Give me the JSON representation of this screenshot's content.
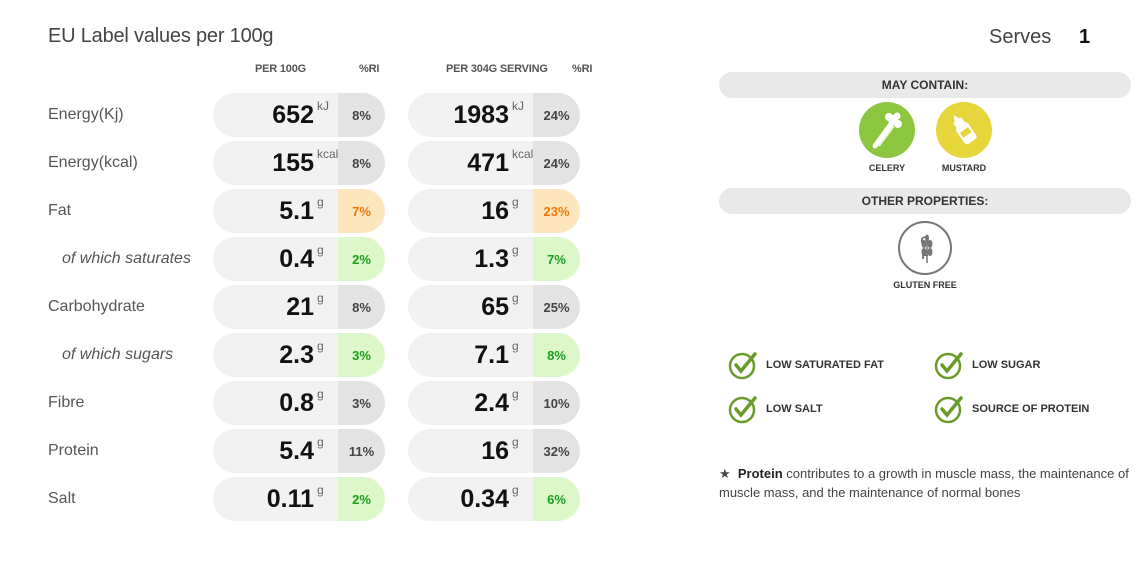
{
  "header": {
    "title": "EU Label values per 100g",
    "serves_label": "Serves",
    "serves_value": "1"
  },
  "columns": {
    "per100": "PER 100G",
    "ri1": "%RI",
    "perServing": "PER 304G SERVING",
    "ri2": "%RI"
  },
  "rows": [
    {
      "label": "Energy(Kj)",
      "sub": false,
      "v1": "652",
      "u1": "kJ",
      "r1": "8%",
      "c1": "grey",
      "v2": "1983",
      "u2": "kJ",
      "r2": "24%",
      "c2": "grey"
    },
    {
      "label": "Energy(kcal)",
      "sub": false,
      "v1": "155",
      "u1": "kcal",
      "r1": "8%",
      "c1": "grey",
      "v2": "471",
      "u2": "kcal",
      "r2": "24%",
      "c2": "grey"
    },
    {
      "label": "Fat",
      "sub": false,
      "v1": "5.1",
      "u1": "g",
      "r1": "7%",
      "c1": "amber",
      "v2": "16",
      "u2": "g",
      "r2": "23%",
      "c2": "amber"
    },
    {
      "label": "of which saturates",
      "sub": true,
      "v1": "0.4",
      "u1": "g",
      "r1": "2%",
      "c1": "green",
      "v2": "1.3",
      "u2": "g",
      "r2": "7%",
      "c2": "green"
    },
    {
      "label": "Carbohydrate",
      "sub": false,
      "v1": "21",
      "u1": "g",
      "r1": "8%",
      "c1": "grey",
      "v2": "65",
      "u2": "g",
      "r2": "25%",
      "c2": "grey"
    },
    {
      "label": "of which sugars",
      "sub": true,
      "v1": "2.3",
      "u1": "g",
      "r1": "3%",
      "c1": "green",
      "v2": "7.1",
      "u2": "g",
      "r2": "8%",
      "c2": "green"
    },
    {
      "label": "Fibre",
      "sub": false,
      "v1": "0.8",
      "u1": "g",
      "r1": "3%",
      "c1": "grey",
      "v2": "2.4",
      "u2": "g",
      "r2": "10%",
      "c2": "grey"
    },
    {
      "label": "Protein",
      "sub": false,
      "v1": "5.4",
      "u1": "g",
      "r1": "11%",
      "c1": "grey",
      "v2": "16",
      "u2": "g",
      "r2": "32%",
      "c2": "grey"
    },
    {
      "label": "Salt",
      "sub": false,
      "v1": "0.11",
      "u1": "g",
      "r1": "2%",
      "c1": "green",
      "v2": "0.34",
      "u2": "g",
      "r2": "6%",
      "c2": "green"
    }
  ],
  "may_contain": {
    "title": "MAY CONTAIN:",
    "items": [
      {
        "label": "CELERY",
        "icon": "celery-icon",
        "color": "#8cc63e"
      },
      {
        "label": "MUSTARD",
        "icon": "mustard-icon",
        "color": "#e6d63c"
      }
    ]
  },
  "other_properties": {
    "title": "OTHER PROPERTIES:",
    "items": [
      {
        "label": "GLUTEN FREE",
        "icon": "gluten-free-icon",
        "badge_text": "G F"
      }
    ]
  },
  "claims": [
    {
      "label": "LOW SATURATED FAT",
      "icon": "check-icon"
    },
    {
      "label": "LOW SUGAR",
      "icon": "check-icon"
    },
    {
      "label": "LOW SALT",
      "icon": "check-icon"
    },
    {
      "label": "SOURCE OF PROTEIN",
      "icon": "check-icon"
    }
  ],
  "note": {
    "star": "★",
    "bold": "Protein",
    "text": " contributes to a growth in muscle mass, the maintenance of muscle mass, and the maintenance of normal bones"
  },
  "colors": {
    "green_bg": "#dcf7c9",
    "green_text": "#1aa01a",
    "amber_bg": "#fde5bd",
    "amber_text": "#f0780a",
    "check_green": "#6a9a2a"
  }
}
